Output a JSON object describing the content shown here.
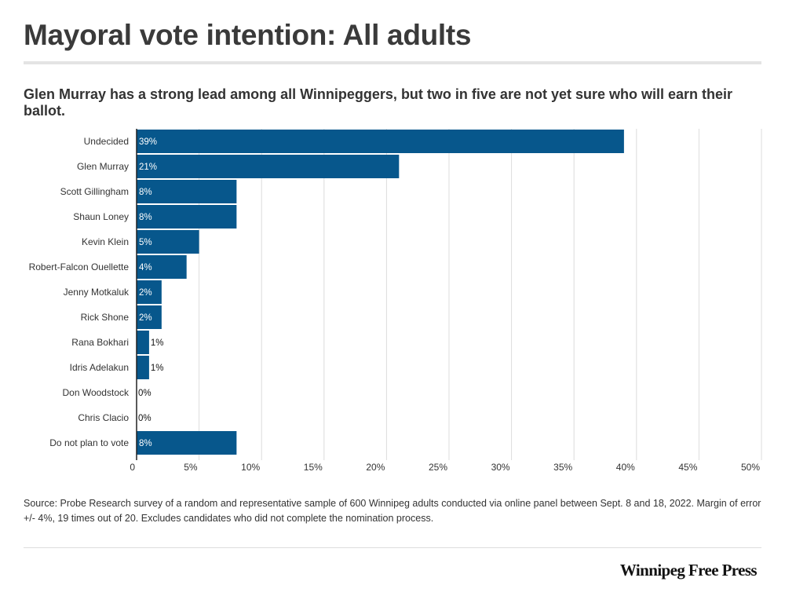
{
  "header": {
    "title": "Mayoral vote intention: All adults",
    "subtitle": "Glen Murray has a strong lead among all Winnipeggers, but two in five are not yet sure who will earn their ballot."
  },
  "chart_data": {
    "type": "bar",
    "orientation": "horizontal",
    "categories": [
      "Undecided",
      "Glen Murray",
      "Scott Gillingham",
      "Shaun Loney",
      "Kevin Klein",
      "Robert-Falcon Ouellette",
      "Jenny Motkaluk",
      "Rick Shone",
      "Rana Bokhari",
      "Idris Adelakun",
      "Don Woodstock",
      "Chris Clacio",
      "Do not plan to vote"
    ],
    "values": [
      39,
      21,
      8,
      8,
      5,
      4,
      2,
      2,
      1,
      1,
      0,
      0,
      8
    ],
    "value_labels": [
      "39%",
      "21%",
      "8%",
      "8%",
      "5%",
      "4%",
      "2%",
      "2%",
      "1%",
      "1%",
      "0%",
      "0%",
      "8%"
    ],
    "xlim": [
      0,
      50
    ],
    "x_ticks": [
      0,
      5,
      10,
      15,
      20,
      25,
      30,
      35,
      40,
      45,
      50
    ],
    "x_tick_labels": [
      "0",
      "5%",
      "10%",
      "15%",
      "20%",
      "25%",
      "30%",
      "35%",
      "40%",
      "45%",
      "50%"
    ],
    "grid": true,
    "bar_color": "#07578c"
  },
  "footer": {
    "source": "Source: Probe Research survey of a random and representative sample of 600 Winnipeg adults conducted via online panel between Sept. 8 and 18, 2022.  Margin of error +/- 4%, 19 times out of 20.  Excludes candidates who did not complete the nomination process.",
    "logo_text": "Winnipeg Free Press"
  }
}
